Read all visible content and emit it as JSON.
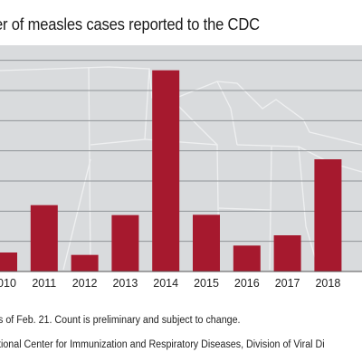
{
  "chart_data": {
    "type": "bar",
    "title": "er of measles cases reported to the CDC",
    "categories": [
      "2010",
      "2011",
      "2012",
      "2013",
      "2014",
      "2015",
      "2016",
      "2017",
      "2018"
    ],
    "values": [
      63,
      220,
      55,
      187,
      667,
      188,
      86,
      120,
      372
    ],
    "ylim": [
      0,
      750
    ],
    "grid": true,
    "bar_color": "#a6192e",
    "background_color": "#d9dbdd",
    "footnote": "s of Feb. 21. Count is preliminary and subject to change.",
    "source": "tional Center for Immunization and Respiratory Diseases, Division of Viral Di"
  }
}
